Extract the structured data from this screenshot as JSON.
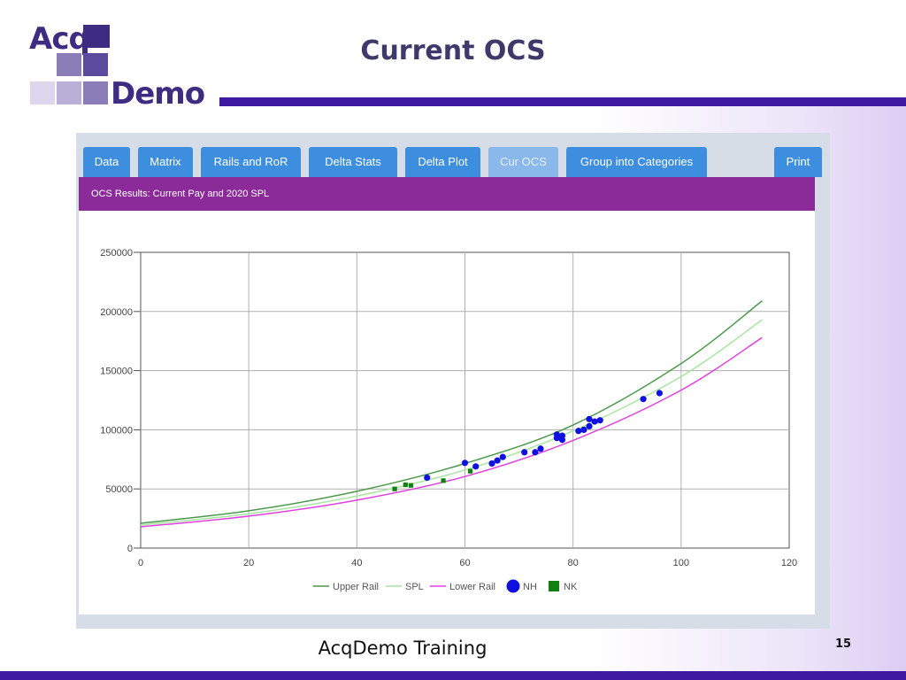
{
  "slide": {
    "title": "Current OCS",
    "footer": "AcqDemo Training",
    "page_number": "15",
    "logo_text_top": "Acq",
    "logo_text_bottom": "Demo"
  },
  "app": {
    "tabs": [
      {
        "label": "Data",
        "active": false
      },
      {
        "label": "Matrix",
        "active": false
      },
      {
        "label": "Rails and RoR",
        "active": false
      },
      {
        "label": "Delta Stats",
        "active": false
      },
      {
        "label": "Delta Plot",
        "active": false
      },
      {
        "label": "Cur OCS",
        "active": true
      },
      {
        "label": "Group into Categories",
        "active": false
      }
    ],
    "print_label": "Print",
    "banner": "OCS Results: Current Pay and 2020 SPL"
  },
  "colors": {
    "upper_rail": "#4a9a4a",
    "spl": "#a8e6a0",
    "lower_rail": "#e040e0",
    "nh": "#1010e0",
    "nk": "#108010"
  },
  "chart_data": {
    "type": "scatter",
    "xlim": [
      0,
      120
    ],
    "ylim": [
      0,
      250000
    ],
    "x_ticks": [
      0,
      20,
      40,
      60,
      80,
      100,
      120
    ],
    "y_ticks": [
      0,
      50000,
      100000,
      150000,
      200000,
      250000
    ],
    "grid": true,
    "legend_position": "bottom",
    "lines": [
      {
        "name": "Upper Rail",
        "x": [
          0,
          20,
          40,
          60,
          80,
          100,
          115
        ],
        "y": [
          21000,
          31500,
          48000,
          71500,
          104000,
          156000,
          209000
        ]
      },
      {
        "name": "SPL",
        "x": [
          0,
          20,
          40,
          60,
          80,
          100,
          115
        ],
        "y": [
          19500,
          29000,
          44000,
          66000,
          99000,
          145000,
          193000
        ]
      },
      {
        "name": "Lower Rail",
        "x": [
          0,
          20,
          40,
          60,
          80,
          100,
          115
        ],
        "y": [
          18000,
          27000,
          40500,
          60500,
          91000,
          133500,
          178000
        ]
      }
    ],
    "scatter_series": [
      {
        "name": "NH",
        "points": [
          [
            53,
            59500
          ],
          [
            60,
            72000
          ],
          [
            62,
            69000
          ],
          [
            65,
            71500
          ],
          [
            66,
            74000
          ],
          [
            67,
            77000
          ],
          [
            71,
            81000
          ],
          [
            73,
            81000
          ],
          [
            74,
            84000
          ],
          [
            77,
            93000
          ],
          [
            77,
            96000
          ],
          [
            78,
            91500
          ],
          [
            78,
            95000
          ],
          [
            81,
            99000
          ],
          [
            82,
            100000
          ],
          [
            83,
            103000
          ],
          [
            83,
            109000
          ],
          [
            84,
            107000
          ],
          [
            85,
            108000
          ],
          [
            93,
            126000
          ],
          [
            96,
            131000
          ]
        ]
      },
      {
        "name": "NK",
        "points": [
          [
            47,
            50000
          ],
          [
            49,
            53500
          ],
          [
            50,
            53000
          ],
          [
            56,
            57000
          ],
          [
            61,
            65000
          ]
        ]
      }
    ]
  }
}
